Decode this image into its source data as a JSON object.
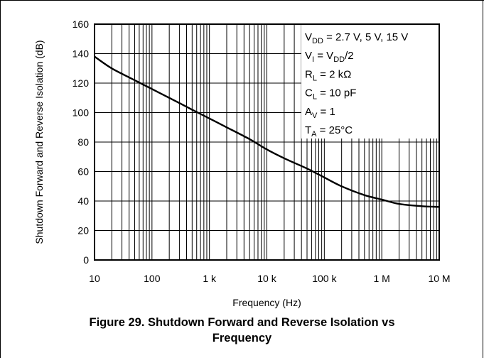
{
  "chart_data": {
    "type": "line",
    "title": "",
    "xlabel": "Frequency (Hz)",
    "ylabel": "Shutdown Forward and Reverse Isolation (dB)",
    "xscale": "log",
    "xlim": [
      10,
      10000000
    ],
    "ylim": [
      0,
      160
    ],
    "x_ticks": [
      10,
      100,
      1000,
      10000,
      100000,
      1000000,
      10000000
    ],
    "x_tick_labels": [
      "10",
      "100",
      "1 k",
      "10 k",
      "100 k",
      "1 M",
      "10 M"
    ],
    "y_ticks": [
      0,
      20,
      40,
      60,
      80,
      100,
      120,
      140,
      160
    ],
    "y_tick_labels": [
      "0",
      "20",
      "40",
      "60",
      "80",
      "100",
      "120",
      "140",
      "160"
    ],
    "grid": true,
    "series": [
      {
        "x": [
          10,
          20,
          50,
          100,
          200,
          500,
          1000,
          2000,
          5000,
          10000,
          20000,
          50000,
          100000,
          200000,
          500000,
          1000000,
          2000000,
          5000000,
          10000000
        ],
        "values": [
          138,
          130,
          122,
          116,
          110,
          102,
          96,
          90,
          82,
          75,
          69,
          62,
          56,
          50,
          44,
          41,
          38,
          36.5,
          36
        ]
      }
    ],
    "annotation_lines": [
      {
        "main": "V",
        "sub": "DD",
        "rest": " = 2.7 V, 5 V, 15 V"
      },
      {
        "main": "V",
        "sub": "I",
        "rest": " = V",
        "sub2": "DD",
        "rest2": "/2"
      },
      {
        "main": "R",
        "sub": "L",
        "rest": " = 2 kΩ"
      },
      {
        "main": "C",
        "sub": "L",
        "rest": " = 10 pF"
      },
      {
        "main": "A",
        "sub": "V",
        "rest": " = 1"
      },
      {
        "main": "T",
        "sub": "A",
        "rest": " = 25°C"
      }
    ]
  },
  "caption": {
    "line1": "Figure 29. Shutdown Forward and Reverse Isolation vs",
    "line2": "Frequency"
  }
}
